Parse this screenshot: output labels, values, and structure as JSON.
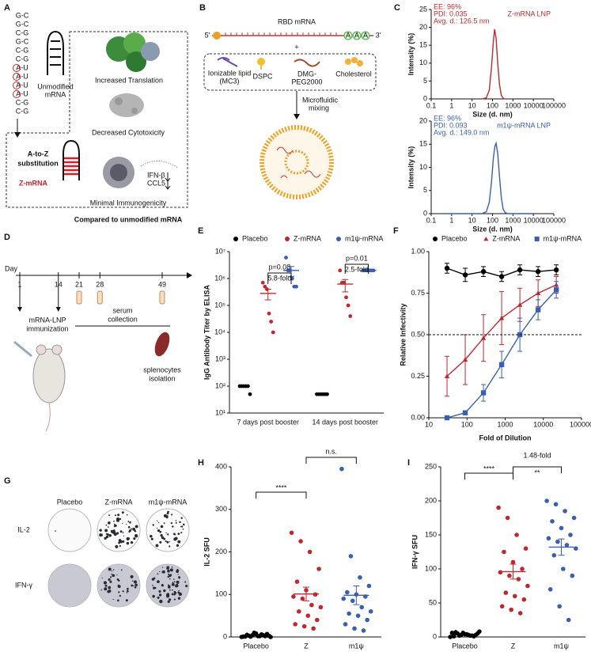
{
  "panel_labels": [
    "A",
    "B",
    "C",
    "D",
    "E",
    "F",
    "G",
    "H",
    "I"
  ],
  "panel_a": {
    "hairpin_pairs": [
      "G-C",
      "G-C",
      "C-G",
      "G-C",
      "C-G",
      "C-G",
      "A-U",
      "A-U",
      "A-U",
      "A-U",
      "C-G",
      "C-G"
    ],
    "unmodified": [
      "Unmodified",
      "mRNA"
    ],
    "substitution": [
      "A-to-Z",
      "substitution"
    ],
    "z_mrna": "Z-mRNA",
    "benefits": [
      "Increased Translation",
      "Decreased Cytotoxicity",
      "Minimal Immunogenicity"
    ],
    "cytokines": [
      "IFN-β",
      "CCL5"
    ],
    "footer": "Compared to unmodified mRNA"
  },
  "panel_b": {
    "mrna": "RBD mRNA",
    "five_prime": "5'",
    "three_prime": "3'",
    "poly_a": [
      "A",
      "A",
      "A"
    ],
    "plus": "+",
    "lipids": [
      [
        "Ionizable lipid",
        "(MC3)"
      ],
      [
        "DSPC"
      ],
      [
        "DMG-",
        "PEG2000"
      ],
      [
        "Cholesterol"
      ]
    ],
    "mixing": [
      "Microfluidic",
      "mixing"
    ]
  },
  "panel_d": {
    "day": "Day",
    "days": [
      1,
      14,
      21,
      28,
      49
    ],
    "immunization": [
      "mRNA-LNP",
      "immunization"
    ],
    "serum": [
      "serum",
      "collection"
    ],
    "splenocytes": [
      "splenocytes",
      "isolation"
    ]
  },
  "panel_g": {
    "columns": [
      "Placebo",
      "Z-mRNA",
      "m1ψ-mRNA"
    ],
    "rows": [
      "IL-2",
      "IFN-γ"
    ]
  },
  "chart_data": [
    {
      "type": "line",
      "y_label": "Intensity (%)",
      "x_label": "Size (d. nm)",
      "x_log_scale": true,
      "legend": "top right",
      "annotations": [
        "EE: 96%",
        "PDI: 0.035",
        "Avg. d.: 126.5 nm"
      ],
      "x": [
        30,
        50,
        70,
        90,
        110,
        126,
        150,
        180,
        220,
        270,
        330,
        400
      ],
      "series": [
        {
          "name": "Z-mRNA LNP",
          "color": "#c0282e",
          "values": [
            0,
            0.3,
            2.5,
            9,
            16,
            19.5,
            17,
            10,
            4,
            1,
            0.2,
            0
          ]
        }
      ],
      "xlim": [
        0.1,
        100000
      ],
      "xticks": [
        0.1,
        1,
        10,
        100,
        1000,
        10000,
        100000
      ],
      "ylim": [
        0,
        25
      ],
      "yticks": [
        0,
        5,
        10,
        15,
        20,
        25
      ]
    },
    {
      "type": "line",
      "y_label": "Intensity (%)",
      "x_label": "Size (d. nm)",
      "x_log_scale": true,
      "legend": "top right",
      "annotations": [
        "EE: 96%",
        "PDI: 0.093",
        "Avg. d.: 149.0 nm"
      ],
      "x": [
        0.5,
        30,
        50,
        70,
        90,
        110,
        130,
        150,
        180,
        220,
        270,
        330,
        420,
        600,
        10000
      ],
      "series": [
        {
          "name": "m1ψ-mRNA LNP",
          "color": "#3a5fb0",
          "values": [
            0,
            0,
            0.4,
            2.5,
            7,
            12,
            14.5,
            15.2,
            13,
            8,
            3.5,
            1,
            0.2,
            0,
            0
          ]
        }
      ],
      "xlim": [
        0.1,
        100000
      ],
      "xticks": [
        0.1,
        1,
        10,
        100,
        1000,
        10000,
        100000
      ],
      "ylim": [
        0,
        20
      ],
      "yticks": [
        0,
        5,
        10,
        15,
        20
      ]
    },
    {
      "type": "strip",
      "y_label": "IgG Antibody Titer by ELISA",
      "y_log_scale": true,
      "legend": "top",
      "categories": [
        "7 days post booster",
        "14 days post booster"
      ],
      "series": [
        {
          "name": "Placebo",
          "color": "#000000",
          "values": [
            [
              100,
              100,
              100,
              100,
              100,
              50
            ],
            [
              50,
              50,
              50,
              50,
              50,
              50
            ]
          ]
        },
        {
          "name": "Z-mRNA",
          "color": "#c0282e",
          "values": [
            [
              700000,
              500000,
              400000,
              50000,
              25000,
              10000
            ],
            [
              2000000,
              700000,
              700000,
              200000,
              100000,
              40000
            ]
          ],
          "means": [
            280000,
            620000
          ],
          "sem": [
            120000,
            300000
          ]
        },
        {
          "name": "m1ψ-mRNA",
          "color": "#3a5fb0",
          "values": [
            [
              6000000,
              2000000,
              2000000,
              1000000,
              500000,
              500000
            ],
            [
              2000000,
              2000000,
              2000000,
              2000000,
              2000000,
              2000000
            ]
          ],
          "means": [
            2000000,
            2000000
          ],
          "sem": [
            800000,
            0
          ]
        }
      ],
      "annotations": [
        "p=0.08",
        "5.8-fold",
        "p=0.01",
        "2.5-fold"
      ],
      "ylim": [
        10,
        10000000
      ],
      "yticks": [
        {
          "value": 10,
          "label": "10¹"
        },
        {
          "value": 100,
          "label": "10²"
        },
        {
          "value": 1000,
          "label": "10³"
        },
        {
          "value": 10000,
          "label": "10⁴"
        },
        {
          "value": 100000,
          "label": "10⁵"
        },
        {
          "value": 1000000,
          "label": "10⁶"
        },
        {
          "value": 10000000,
          "label": "10⁷"
        }
      ]
    },
    {
      "type": "line",
      "y_label": "Relative Infectivity",
      "x_label": "Fold of Dilution",
      "x_log_scale": true,
      "legend": "top",
      "hline": 0.5,
      "x": [
        30,
        90,
        270,
        810,
        2430,
        7290,
        21870
      ],
      "series": [
        {
          "name": "Placebo",
          "color": "#000000",
          "marker": "circle",
          "values": [
            0.9,
            0.86,
            0.88,
            0.85,
            0.89,
            0.88,
            0.89
          ],
          "errors": [
            0.03,
            0.04,
            0.03,
            0.03,
            0.03,
            0.03,
            0.03
          ]
        },
        {
          "name": "Z-mRNA",
          "color": "#c0282e",
          "marker": "triangle",
          "values": [
            0.25,
            0.35,
            0.48,
            0.6,
            0.68,
            0.75,
            0.8
          ],
          "errors": [
            0.12,
            0.15,
            0.14,
            0.16,
            0.1,
            0.08,
            0.05
          ]
        },
        {
          "name": "m1ψ-mRNA",
          "color": "#3a5fb0",
          "marker": "square",
          "values": [
            0,
            0.03,
            0.15,
            0.32,
            0.5,
            0.65,
            0.77
          ],
          "errors": [
            0,
            0.01,
            0.05,
            0.08,
            0.1,
            0.06,
            0.05
          ]
        }
      ],
      "xlim": [
        10,
        100000
      ],
      "xticks": [
        10,
        100,
        1000,
        10000,
        100000
      ],
      "ylim": [
        0,
        1
      ],
      "yticks": [
        {
          "value": 0,
          "label": "0.00"
        },
        {
          "value": 0.25,
          "label": "0.25"
        },
        {
          "value": 0.5,
          "label": "0.50"
        },
        {
          "value": 0.75,
          "label": "0.75"
        },
        {
          "value": 1,
          "label": "1.00"
        }
      ]
    },
    {
      "type": "strip",
      "y_label": "IL-2 SFU",
      "categories": [
        "Placebo",
        "Z",
        "m1ψ"
      ],
      "groups": [
        {
          "color": "#000000",
          "values": [
            0,
            1,
            2,
            3,
            5,
            8,
            2,
            1,
            4,
            6,
            0,
            3,
            2,
            7,
            1,
            10,
            4
          ],
          "means": [
            3.5
          ],
          "sem": [
            0.8
          ]
        },
        {
          "color": "#c0282e",
          "values": [
            245,
            225,
            200,
            160,
            130,
            110,
            100,
            95,
            90,
            75,
            70,
            60,
            50,
            40,
            30,
            25,
            20
          ],
          "means": [
            101
          ],
          "sem": [
            16
          ]
        },
        {
          "color": "#3a5fb0",
          "values": [
            395,
            190,
            140,
            120,
            105,
            100,
            95,
            90,
            85,
            70,
            60,
            55,
            50,
            40,
            30,
            20,
            15
          ],
          "means": [
            98
          ],
          "sem": [
            22
          ]
        }
      ],
      "annotations": [
        "****",
        "n.s."
      ],
      "ylim": [
        0,
        400
      ],
      "yticks": [
        0,
        100,
        200,
        300,
        400
      ]
    },
    {
      "type": "strip",
      "y_label": "IFN-γ SFU",
      "categories": [
        "Placebo",
        "Z",
        "m1ψ"
      ],
      "groups": [
        {
          "color": "#000000",
          "values": [
            0,
            2,
            3,
            5,
            7,
            4,
            1,
            6,
            3,
            2,
            8,
            5,
            4,
            3,
            1,
            6,
            2
          ],
          "means": [
            3.6
          ],
          "sem": [
            0.6
          ]
        },
        {
          "color": "#c0282e",
          "values": [
            190,
            175,
            150,
            130,
            125,
            110,
            100,
            95,
            90,
            85,
            75,
            65,
            60,
            55,
            45,
            40,
            35
          ],
          "means": [
            96
          ],
          "sem": [
            11
          ]
        },
        {
          "color": "#3a5fb0",
          "values": [
            200,
            195,
            185,
            175,
            170,
            160,
            150,
            145,
            140,
            135,
            130,
            120,
            100,
            90,
            70,
            45,
            25
          ],
          "means": [
            132
          ],
          "sem": [
            12
          ]
        }
      ],
      "annotations": [
        "****",
        "1.48-fold",
        "**"
      ],
      "ylim": [
        0,
        250
      ],
      "yticks": [
        0,
        50,
        100,
        150,
        200,
        250
      ]
    }
  ]
}
